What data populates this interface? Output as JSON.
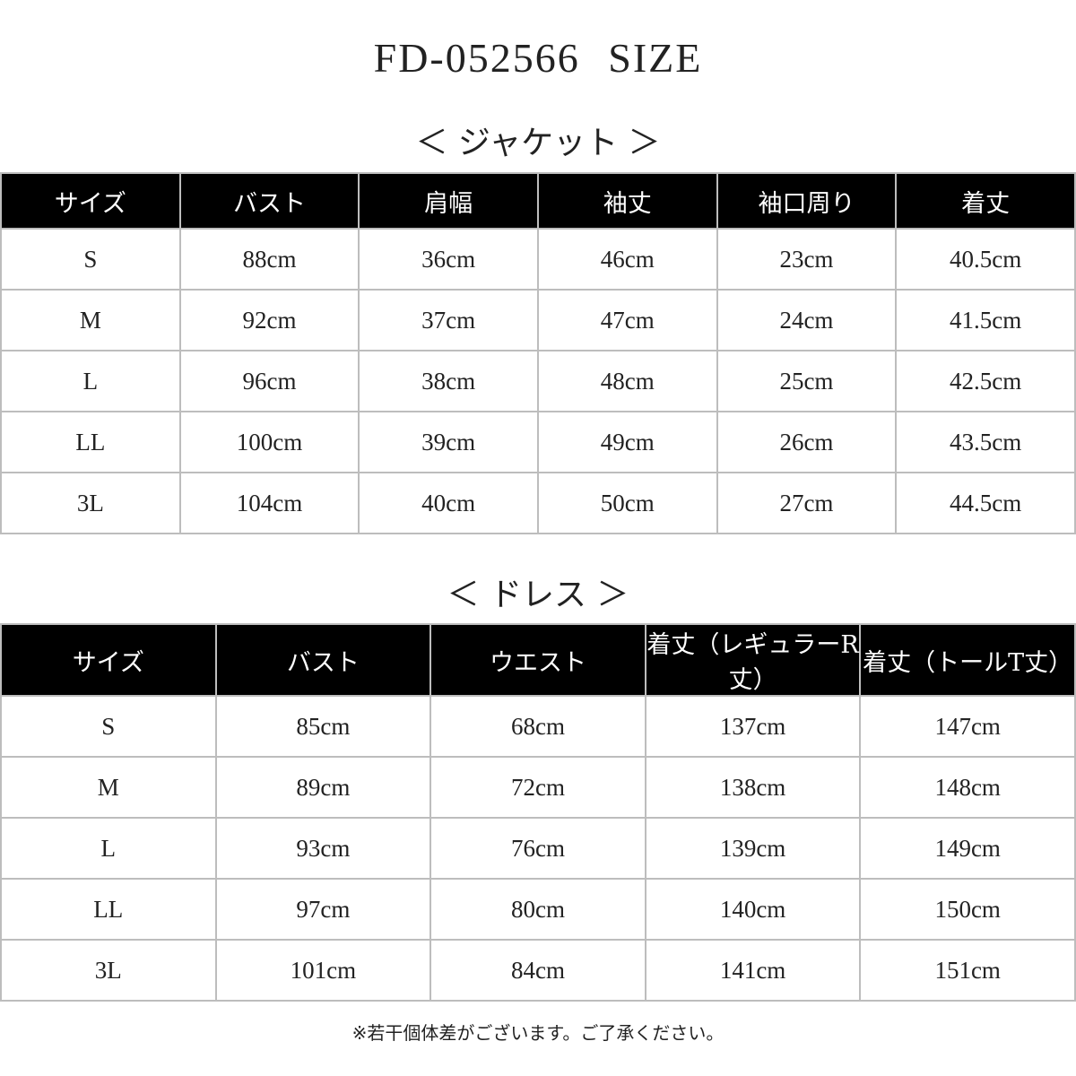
{
  "title": "FD-052566  SIZE",
  "jacket": {
    "heading": "＜ ジャケット ＞",
    "headers": [
      "サイズ",
      "バスト",
      "肩幅",
      "袖丈",
      "袖口周り",
      "着丈"
    ],
    "rows": [
      [
        "S",
        "88cm",
        "36cm",
        "46cm",
        "23cm",
        "40.5cm"
      ],
      [
        "M",
        "92cm",
        "37cm",
        "47cm",
        "24cm",
        "41.5cm"
      ],
      [
        "L",
        "96cm",
        "38cm",
        "48cm",
        "25cm",
        "42.5cm"
      ],
      [
        "LL",
        "100cm",
        "39cm",
        "49cm",
        "26cm",
        "43.5cm"
      ],
      [
        "3L",
        "104cm",
        "40cm",
        "50cm",
        "27cm",
        "44.5cm"
      ]
    ]
  },
  "dress": {
    "heading": "＜ ドレス ＞",
    "headers": [
      "サイズ",
      "バスト",
      "ウエスト",
      "着丈（レギュラーR丈）",
      "着丈（トールT丈）"
    ],
    "rows": [
      [
        "S",
        "85cm",
        "68cm",
        "137cm",
        "147cm"
      ],
      [
        "M",
        "89cm",
        "72cm",
        "138cm",
        "148cm"
      ],
      [
        "L",
        "93cm",
        "76cm",
        "139cm",
        "149cm"
      ],
      [
        "LL",
        "97cm",
        "80cm",
        "140cm",
        "150cm"
      ],
      [
        "3L",
        "101cm",
        "84cm",
        "141cm",
        "151cm"
      ]
    ]
  },
  "note": "※若干個体差がございます。ご了承ください。"
}
